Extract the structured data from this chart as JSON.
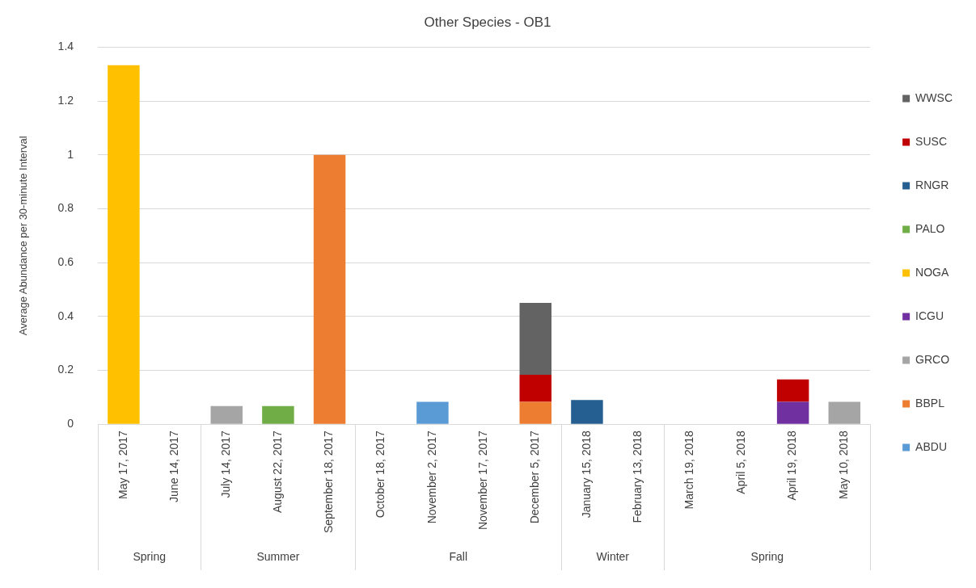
{
  "chart_data": {
    "type": "bar",
    "title": "Other Species - OB1",
    "ylabel": "Average Abundance per 30-minute Interval",
    "categories": [
      "May 17, 2017",
      "June 14, 2017",
      "July 14, 2017",
      "August 22, 2017",
      "September 18, 2017",
      "October 18, 2017",
      "November 2, 2017",
      "November 17, 2017",
      "December 5, 2017",
      "January 15, 2018",
      "February 13, 2018",
      "March 19, 2018",
      "April 5, 2018",
      "April 19, 2018",
      "May 10, 2018"
    ],
    "stacked": true,
    "series": [
      {
        "name": "ABDU",
        "color": "#5b9bd5",
        "values": [
          0,
          0,
          0,
          0,
          0,
          0,
          0.083,
          0,
          0,
          0,
          0,
          0,
          0,
          0,
          0
        ]
      },
      {
        "name": "BBPL",
        "color": "#ed7d31",
        "values": [
          0,
          0,
          0,
          0,
          1.0,
          0,
          0,
          0,
          0.083,
          0,
          0,
          0,
          0,
          0,
          0
        ]
      },
      {
        "name": "GRCO",
        "color": "#a5a5a5",
        "values": [
          0,
          0,
          0.067,
          0,
          0,
          0,
          0,
          0,
          0,
          0,
          0,
          0,
          0,
          0,
          0.083
        ]
      },
      {
        "name": "ICGU",
        "color": "#7030a0",
        "values": [
          0,
          0,
          0,
          0,
          0,
          0,
          0,
          0,
          0,
          0,
          0,
          0,
          0,
          0.083,
          0
        ]
      },
      {
        "name": "NOGA",
        "color": "#ffc000",
        "values": [
          1.333,
          0,
          0,
          0,
          0,
          0,
          0,
          0,
          0,
          0,
          0,
          0,
          0,
          0,
          0
        ]
      },
      {
        "name": "PALO",
        "color": "#70ad47",
        "values": [
          0,
          0,
          0,
          0.067,
          0,
          0,
          0,
          0,
          0,
          0,
          0,
          0,
          0,
          0,
          0
        ]
      },
      {
        "name": "RNGR",
        "color": "#255e91",
        "values": [
          0,
          0,
          0,
          0,
          0,
          0,
          0,
          0,
          0,
          0.09,
          0,
          0,
          0,
          0,
          0
        ]
      },
      {
        "name": "SUSC",
        "color": "#c00000",
        "values": [
          0,
          0,
          0,
          0,
          0,
          0,
          0,
          0,
          0.1,
          0,
          0,
          0,
          0,
          0.083,
          0
        ]
      },
      {
        "name": "WWSC",
        "color": "#636363",
        "values": [
          0,
          0,
          0,
          0,
          0,
          0,
          0,
          0,
          0.267,
          0,
          0,
          0,
          0,
          0,
          0
        ]
      }
    ],
    "ylim": [
      0,
      1.4
    ],
    "yticks": [
      0,
      0.2,
      0.4,
      0.6,
      0.8,
      1,
      1.2,
      1.4
    ],
    "grid": "y",
    "legend": "right",
    "annotations": [
      "Spring",
      "Summer",
      "Fall",
      "Winter",
      "Spring"
    ]
  }
}
